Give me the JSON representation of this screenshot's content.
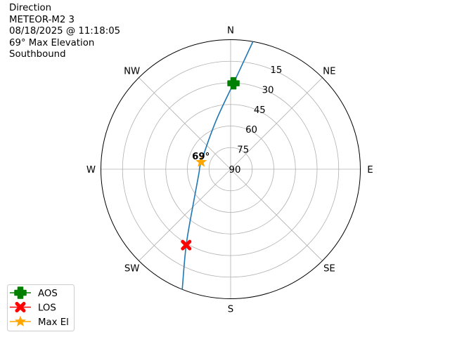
{
  "title_lines": [
    "Direction",
    "METEOR-M2 3",
    "08/18/2025 @ 11:18:05",
    "69° Max Elevation",
    "Southbound"
  ],
  "chart_data": {
    "type": "polar-line",
    "theta_zero": "N",
    "theta_direction": "clockwise",
    "direction_labels": [
      {
        "label": "N",
        "az": 0
      },
      {
        "label": "NE",
        "az": 45
      },
      {
        "label": "E",
        "az": 90
      },
      {
        "label": "SE",
        "az": 135
      },
      {
        "label": "S",
        "az": 180
      },
      {
        "label": "SW",
        "az": 225
      },
      {
        "label": "W",
        "az": 270
      },
      {
        "label": "NW",
        "az": 315
      }
    ],
    "radial_axis": {
      "center_value": 90,
      "edge_value": 0,
      "ticks": [
        15,
        30,
        45,
        60,
        75,
        90
      ]
    },
    "grid": true,
    "track": {
      "color": "#1f77b4",
      "points": [
        {
          "az": 9.9,
          "el": 0
        },
        {
          "az": 1.9,
          "el": 30.3
        },
        {
          "az": 342.8,
          "el": 55.2
        },
        {
          "az": 283.7,
          "el": 69
        },
        {
          "az": 262.4,
          "el": 67.8
        },
        {
          "az": 227.2,
          "el": 54.7
        },
        {
          "az": 210.3,
          "el": 28.9
        },
        {
          "az": 201.9,
          "el": 0
        }
      ]
    },
    "markers": [
      {
        "name": "AOS",
        "az": 1.9,
        "el": 30.3,
        "color": "#008000",
        "symbol": "plus"
      },
      {
        "name": "LOS",
        "az": 210.3,
        "el": 28.9,
        "color": "#ff0000",
        "symbol": "x"
      },
      {
        "name": "Max El",
        "az": 283.7,
        "el": 69,
        "color": "#ffa500",
        "symbol": "star"
      }
    ],
    "annotation": "69°",
    "legend_position": "lower-left"
  }
}
